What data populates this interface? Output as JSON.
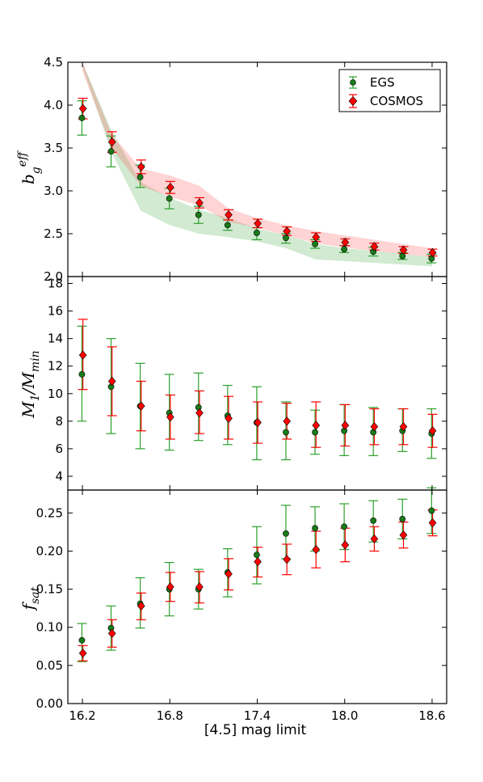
{
  "chart_data": [
    {
      "type": "scatter",
      "ylabel": "b_g^eff",
      "ylim": [
        2.0,
        4.5
      ],
      "yticks": [
        2.0,
        2.5,
        3.0,
        3.5,
        4.0,
        4.5
      ],
      "ytick_labels": [
        "2.0",
        "2.5",
        "3.0",
        "3.5",
        "4.0",
        "4.5"
      ],
      "x": [
        16.2,
        16.4,
        16.6,
        16.8,
        17.0,
        17.2,
        17.4,
        17.6,
        17.8,
        18.0,
        18.2,
        18.4,
        18.6
      ],
      "legend": {
        "placement": "top-right",
        "entries": [
          "EGS",
          "COSMOS"
        ]
      },
      "series": [
        {
          "name": "EGS",
          "color": "#1a7a1a",
          "errcolor": "#2ca02c",
          "marker": "circle",
          "values": [
            3.85,
            3.46,
            3.16,
            2.91,
            2.72,
            2.6,
            2.51,
            2.45,
            2.38,
            2.32,
            2.29,
            2.24,
            2.21
          ],
          "err_lo": [
            0.2,
            0.18,
            0.12,
            0.12,
            0.1,
            0.06,
            0.08,
            0.06,
            0.05,
            0.04,
            0.05,
            0.04,
            0.05
          ],
          "err_hi": [
            0.2,
            0.18,
            0.14,
            0.12,
            0.1,
            0.06,
            0.06,
            0.05,
            0.05,
            0.04,
            0.05,
            0.04,
            0.05
          ],
          "band_lo": [
            4.45,
            3.45,
            2.77,
            2.6,
            2.5,
            2.46,
            2.41,
            2.33,
            2.2,
            2.18,
            2.16,
            2.14,
            2.12
          ],
          "band_hi": [
            4.5,
            3.7,
            3.1,
            2.92,
            2.78,
            2.68,
            2.56,
            2.48,
            2.38,
            2.33,
            2.3,
            2.26,
            2.23
          ]
        },
        {
          "name": "COSMOS",
          "color": "#ff0000",
          "errcolor": "#ff0000",
          "marker": "diamond",
          "values": [
            3.96,
            3.57,
            3.28,
            3.04,
            2.86,
            2.72,
            2.62,
            2.53,
            2.46,
            2.4,
            2.35,
            2.31,
            2.28
          ],
          "err_lo": [
            0.12,
            0.12,
            0.08,
            0.07,
            0.06,
            0.06,
            0.05,
            0.05,
            0.05,
            0.04,
            0.04,
            0.04,
            0.04
          ],
          "err_hi": [
            0.12,
            0.12,
            0.08,
            0.07,
            0.06,
            0.06,
            0.05,
            0.05,
            0.05,
            0.04,
            0.04,
            0.04,
            0.04
          ],
          "band_lo": [
            4.4,
            3.5,
            3.06,
            2.93,
            2.83,
            2.64,
            2.57,
            2.48,
            2.39,
            2.34,
            2.3,
            2.26,
            2.23
          ],
          "band_hi": [
            4.5,
            3.66,
            3.26,
            3.18,
            3.06,
            2.8,
            2.68,
            2.6,
            2.53,
            2.48,
            2.43,
            2.38,
            2.33
          ]
        }
      ]
    },
    {
      "type": "scatter",
      "ylabel": "M_1/M_min",
      "ylim": [
        3.0,
        18.5
      ],
      "yticks": [
        4,
        6,
        8,
        10,
        12,
        14,
        16,
        18
      ],
      "ytick_labels": [
        "4",
        "6",
        "8",
        "10",
        "12",
        "14",
        "16",
        "18"
      ],
      "x": [
        16.2,
        16.4,
        16.6,
        16.8,
        17.0,
        17.2,
        17.4,
        17.6,
        17.8,
        18.0,
        18.2,
        18.4,
        18.6
      ],
      "series": [
        {
          "name": "EGS",
          "color": "#1a7a1a",
          "errcolor": "#2ca02c",
          "marker": "circle",
          "values": [
            11.4,
            10.5,
            9.1,
            8.6,
            9.0,
            8.4,
            7.9,
            7.2,
            7.2,
            7.3,
            7.2,
            7.3,
            7.1
          ],
          "err_lo": [
            3.4,
            3.4,
            3.1,
            2.7,
            2.4,
            2.1,
            2.7,
            2.0,
            1.6,
            1.8,
            1.7,
            1.5,
            1.8
          ],
          "err_hi": [
            3.5,
            3.5,
            3.1,
            2.8,
            2.5,
            2.2,
            2.6,
            2.2,
            1.6,
            1.9,
            1.8,
            1.6,
            1.8
          ]
        },
        {
          "name": "COSMOS",
          "color": "#ff0000",
          "errcolor": "#ff0000",
          "marker": "diamond",
          "values": [
            12.8,
            10.9,
            9.1,
            8.3,
            8.6,
            8.2,
            7.9,
            8.0,
            7.7,
            7.7,
            7.6,
            7.6,
            7.3
          ],
          "err_lo": [
            2.5,
            2.5,
            1.8,
            1.6,
            1.5,
            1.5,
            1.5,
            1.3,
            1.6,
            1.5,
            1.3,
            1.3,
            1.2
          ],
          "err_hi": [
            2.6,
            2.5,
            1.8,
            1.6,
            1.6,
            1.6,
            1.5,
            1.3,
            1.7,
            1.5,
            1.3,
            1.3,
            1.2
          ]
        }
      ]
    },
    {
      "type": "scatter",
      "ylabel": "f_sat",
      "xlabel": "[4.5] mag limit",
      "ylim": [
        0.0,
        0.28
      ],
      "yticks": [
        0.0,
        0.05,
        0.1,
        0.15,
        0.2,
        0.25
      ],
      "ytick_labels": [
        "0.00",
        "0.05",
        "0.10",
        "0.15",
        "0.20",
        "0.25"
      ],
      "xlim": [
        16.1,
        18.7
      ],
      "xticks": [
        16.2,
        16.8,
        17.4,
        18.0,
        18.6
      ],
      "xtick_labels": [
        "16.2",
        "16.8",
        "17.4",
        "18.0",
        "18.6"
      ],
      "x": [
        16.2,
        16.4,
        16.6,
        16.8,
        17.0,
        17.2,
        17.4,
        17.6,
        17.8,
        18.0,
        18.2,
        18.4,
        18.6
      ],
      "series": [
        {
          "name": "EGS",
          "color": "#1a7a1a",
          "errcolor": "#2ca02c",
          "marker": "circle",
          "values": [
            0.083,
            0.099,
            0.131,
            0.15,
            0.15,
            0.172,
            0.195,
            0.223,
            0.23,
            0.232,
            0.24,
            0.242,
            0.253
          ],
          "err_lo": [
            0.028,
            0.029,
            0.032,
            0.035,
            0.026,
            0.032,
            0.038,
            0.033,
            0.03,
            0.03,
            0.028,
            0.026,
            0.03
          ],
          "err_hi": [
            0.022,
            0.029,
            0.034,
            0.035,
            0.026,
            0.031,
            0.037,
            0.037,
            0.028,
            0.03,
            0.026,
            0.026,
            0.03
          ]
        },
        {
          "name": "COSMOS",
          "color": "#ff0000",
          "errcolor": "#ff0000",
          "marker": "diamond",
          "values": [
            0.066,
            0.092,
            0.128,
            0.153,
            0.153,
            0.17,
            0.186,
            0.189,
            0.202,
            0.208,
            0.216,
            0.221,
            0.237
          ],
          "err_lo": [
            0.01,
            0.018,
            0.018,
            0.019,
            0.021,
            0.021,
            0.02,
            0.02,
            0.024,
            0.022,
            0.016,
            0.017,
            0.017
          ],
          "err_hi": [
            0.01,
            0.018,
            0.017,
            0.019,
            0.02,
            0.02,
            0.019,
            0.02,
            0.024,
            0.022,
            0.016,
            0.017,
            0.017
          ]
        }
      ]
    }
  ]
}
